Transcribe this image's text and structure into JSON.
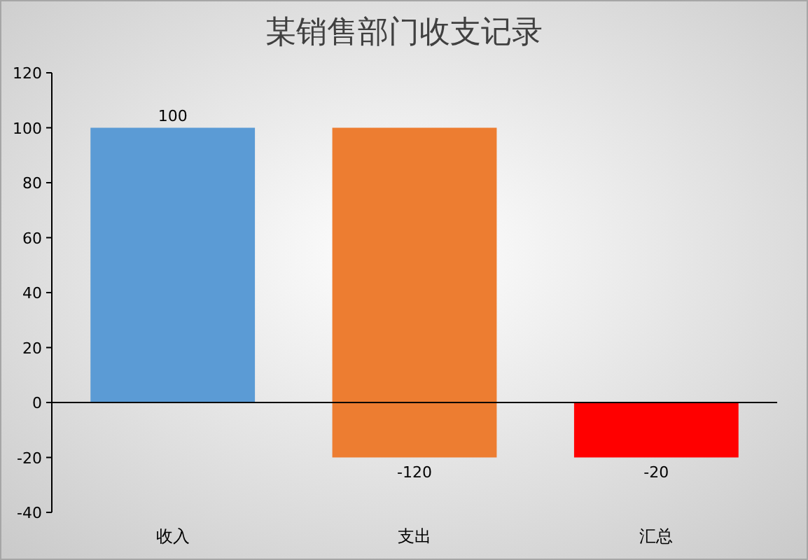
{
  "chart_data": {
    "type": "bar",
    "title": "某销售部门收支记录",
    "categories": [
      "收入",
      "支出",
      "汇总"
    ],
    "values": [
      100,
      -120,
      -20
    ],
    "base": [
      0,
      100,
      0
    ],
    "colors": [
      "#5b9bd5",
      "#ed7d31",
      "#ff0000"
    ],
    "ylim": [
      -40,
      120
    ],
    "yticks": [
      -40,
      -20,
      0,
      20,
      40,
      60,
      80,
      100,
      120
    ],
    "data_labels": true
  }
}
